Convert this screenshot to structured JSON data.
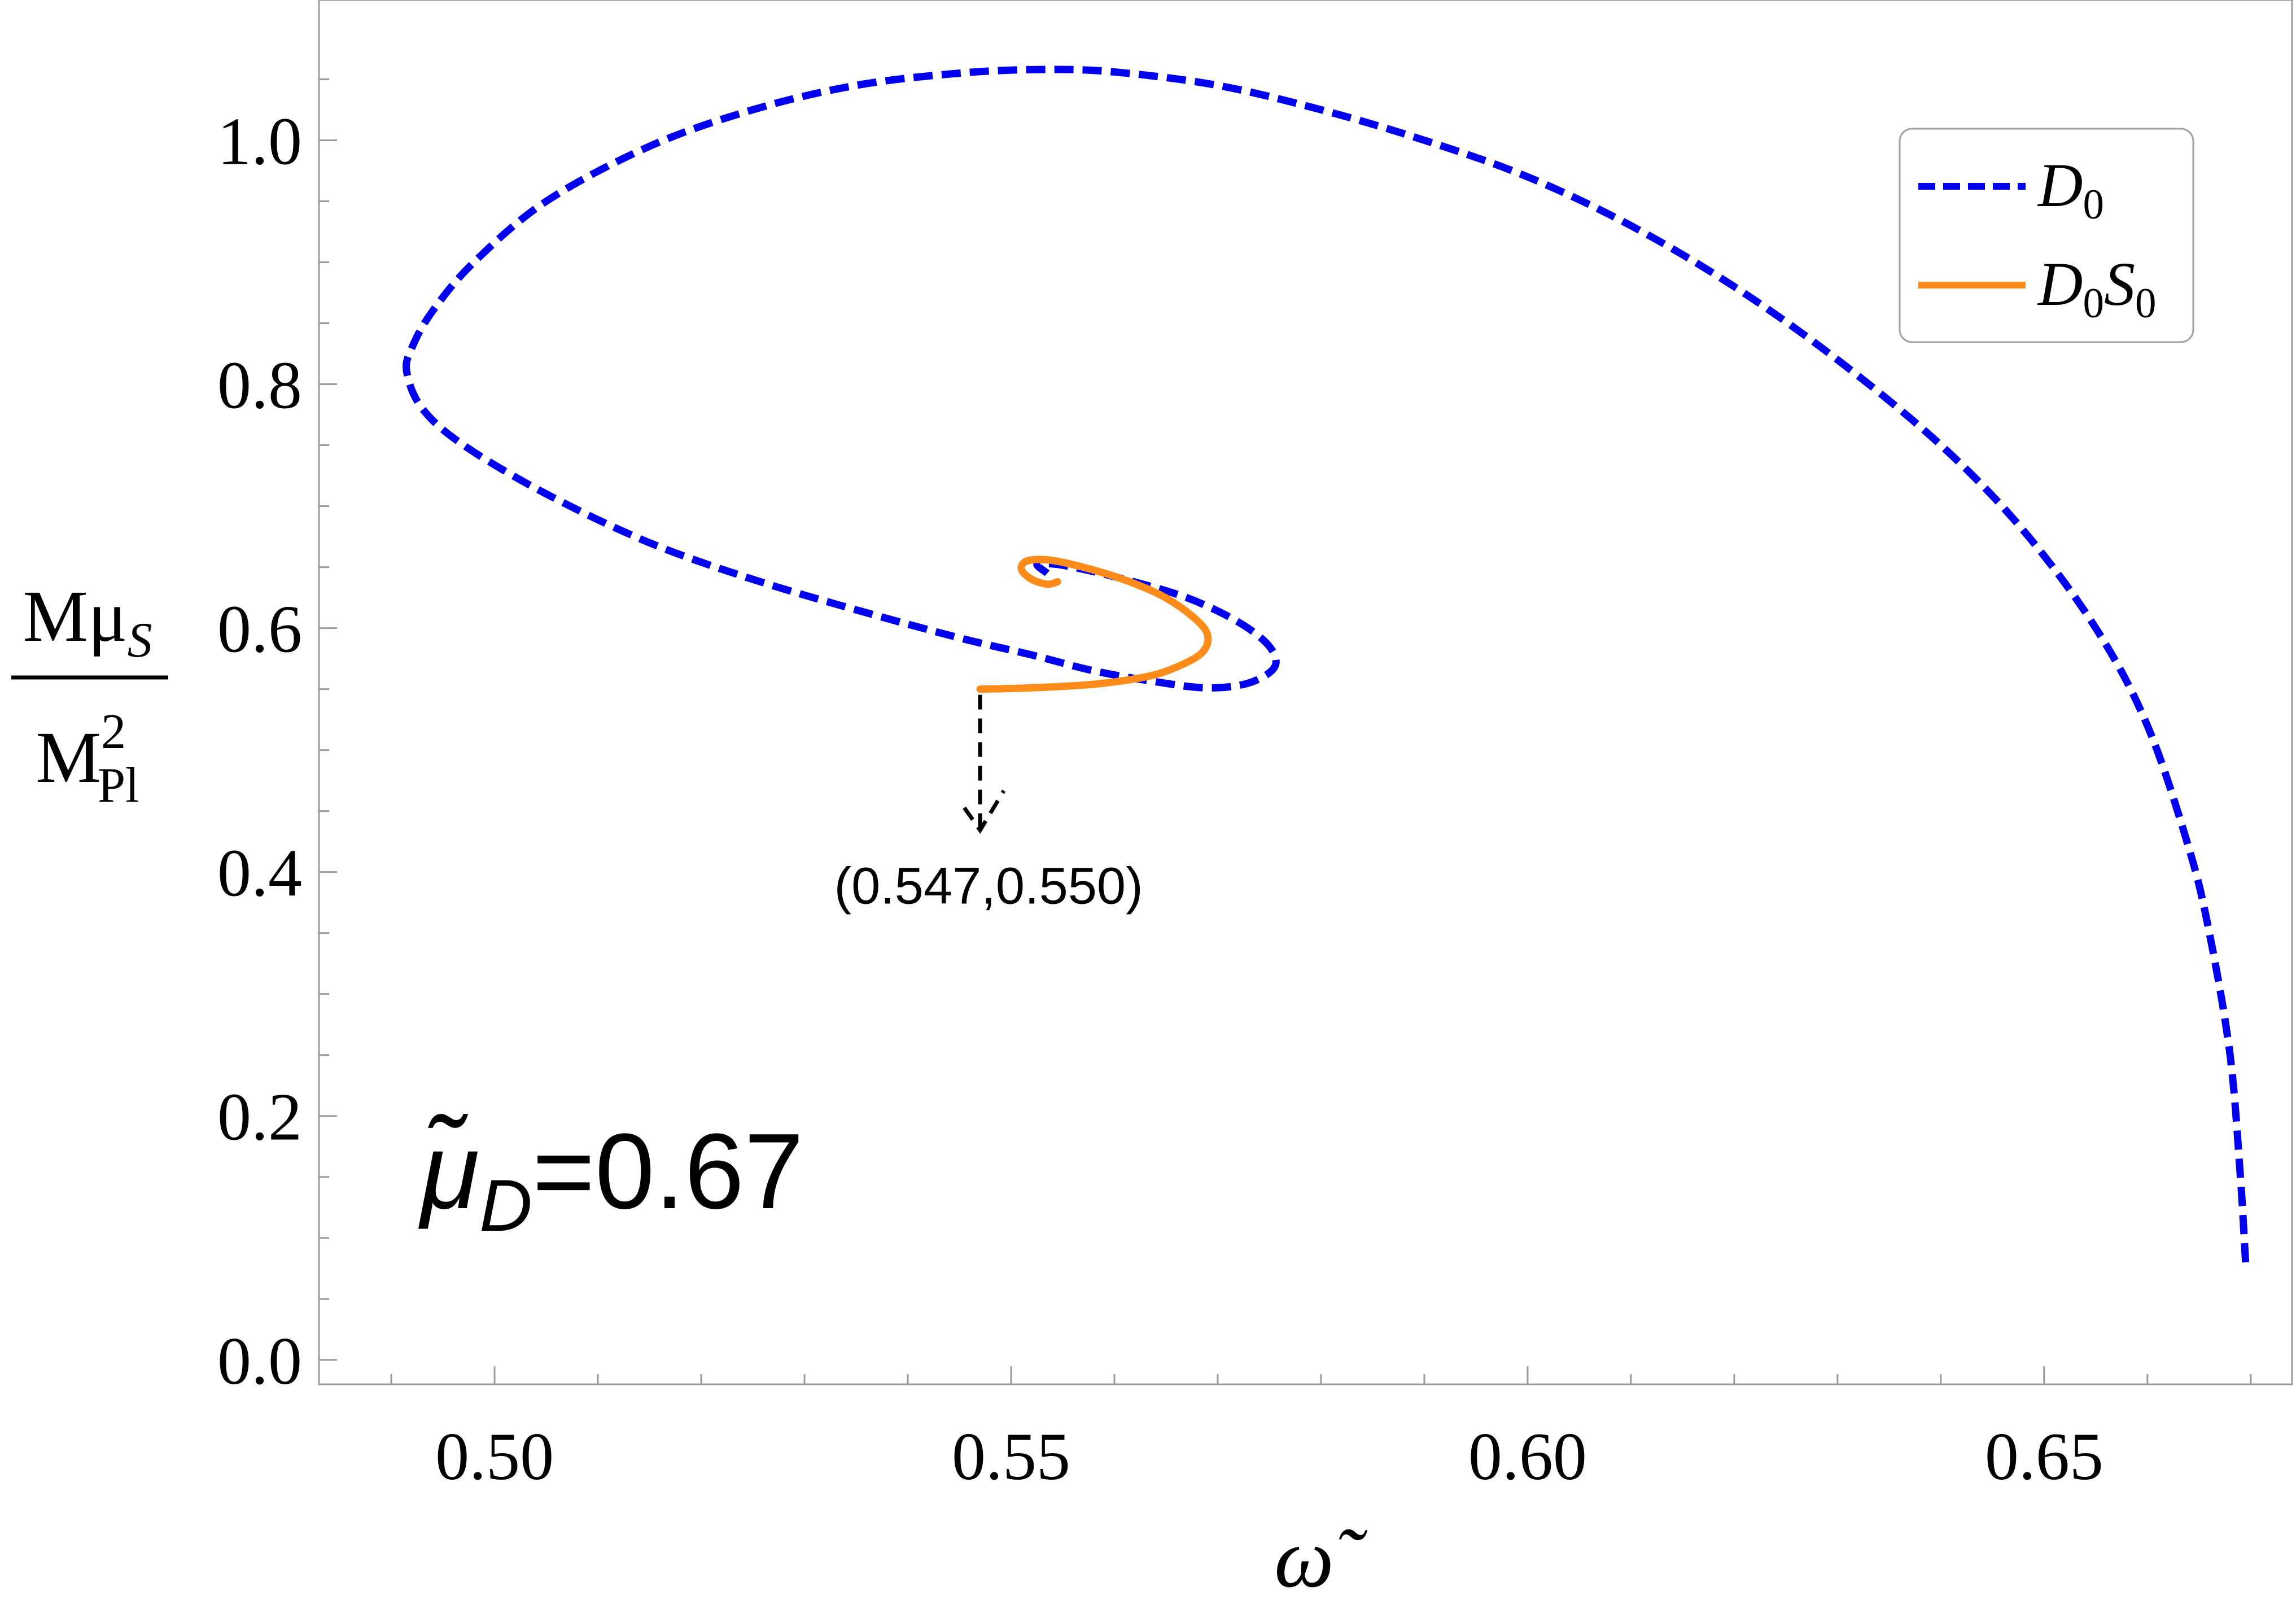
{
  "chart_data": {
    "type": "line",
    "xlabel": "ω̃",
    "ylabel": {
      "numerator": "Mμ",
      "numerator_sub": "S",
      "denominator": "M",
      "denominator_sup": "2",
      "denominator_sub": "Pl"
    },
    "xlim": [
      0.483,
      0.674
    ],
    "ylim": [
      -0.02,
      1.115
    ],
    "x_ticks": [
      0.5,
      0.55,
      0.6,
      0.65
    ],
    "x_tick_labels": [
      "0.50",
      "0.55",
      "0.60",
      "0.65"
    ],
    "y_ticks": [
      0.0,
      0.2,
      0.4,
      0.6,
      0.8,
      1.0
    ],
    "y_tick_labels": [
      "0.0",
      "0.2",
      "0.4",
      "0.6",
      "0.8",
      "1.0"
    ],
    "grid": false,
    "legend_position": "top-right",
    "series": [
      {
        "name": "D0",
        "label_main": "D",
        "label_sub": "0",
        "color": "#0000ee",
        "style": "dashed",
        "x": [
          0.6695,
          0.669,
          0.668,
          0.666,
          0.664,
          0.66,
          0.655,
          0.648,
          0.64,
          0.63,
          0.62,
          0.61,
          0.6,
          0.59,
          0.58,
          0.57,
          0.56,
          0.553,
          0.545,
          0.535,
          0.525,
          0.515,
          0.505,
          0.498,
          0.494,
          0.492,
          0.4915,
          0.493,
          0.497,
          0.505,
          0.515,
          0.525,
          0.535,
          0.545,
          0.552,
          0.558,
          0.564,
          0.569,
          0.573,
          0.5755,
          0.575,
          0.572,
          0.567,
          0.561,
          0.556,
          0.5535,
          0.5525,
          0.5535
        ],
        "y": [
          0.08,
          0.15,
          0.25,
          0.35,
          0.42,
          0.52,
          0.6,
          0.68,
          0.75,
          0.82,
          0.88,
          0.93,
          0.97,
          1.0,
          1.025,
          1.045,
          1.056,
          1.058,
          1.055,
          1.045,
          1.025,
          0.995,
          0.95,
          0.9,
          0.86,
          0.83,
          0.81,
          0.78,
          0.75,
          0.71,
          0.67,
          0.64,
          0.615,
          0.592,
          0.578,
          0.565,
          0.556,
          0.551,
          0.555,
          0.568,
          0.585,
          0.605,
          0.625,
          0.64,
          0.65,
          0.653,
          0.652,
          0.645
        ]
      },
      {
        "name": "D0S0",
        "label_main": "D",
        "label_sub": "0",
        "label_main2": "S",
        "label_sub2": "0",
        "color": "#ff8c1a",
        "style": "solid",
        "x": [
          0.547,
          0.552,
          0.558,
          0.563,
          0.566,
          0.5685,
          0.569,
          0.5675,
          0.5645,
          0.5605,
          0.5565,
          0.5535,
          0.5515,
          0.551,
          0.552,
          0.5535,
          0.5545
        ],
        "y": [
          0.55,
          0.551,
          0.554,
          0.56,
          0.568,
          0.58,
          0.595,
          0.61,
          0.627,
          0.641,
          0.651,
          0.656,
          0.655,
          0.648,
          0.64,
          0.636,
          0.638
        ]
      }
    ],
    "annotations": {
      "point_label": "(0.547,0.550)",
      "point": [
        0.547,
        0.55
      ],
      "param_main": "μ̃",
      "param_sub": "D",
      "param_value": "=0.67"
    }
  }
}
